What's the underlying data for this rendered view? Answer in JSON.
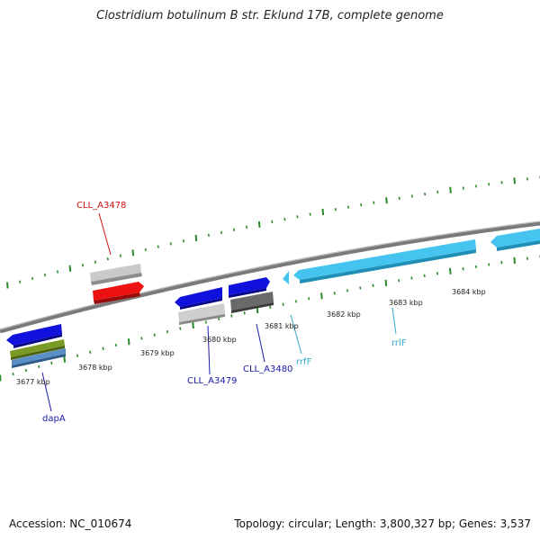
{
  "title": "Clostridium botulinum B str. Eklund 17B, complete genome",
  "footer": {
    "accession": "Accession: NC_010674",
    "summary": "Topology: circular; Length: 3,800,327 bp; Genes: 3,537"
  },
  "colors": {
    "backbone": "#8a8a8a",
    "tick": "#2a8a2a",
    "blue_gene": "#1010dd",
    "red_gene": "#ee1111",
    "light_blue_gene": "#44c4ee",
    "label_blue": "#1a1aaa",
    "label_red": "#cc1111",
    "label_cyan": "#33aacc"
  },
  "kbp_labels": [
    "3677 kbp",
    "3678 kbp",
    "3679 kbp",
    "3680 kbp",
    "3681 kbp",
    "3682 kbp",
    "3683 kbp",
    "3684 kbp"
  ],
  "gene_labels": {
    "cll_a3478": "CLL_A3478",
    "cll_a3479": "CLL_A3479",
    "cll_a3480": "CLL_A3480",
    "dapa": "dapA",
    "rrff": "rrfF",
    "rrlf": "rrlF"
  }
}
